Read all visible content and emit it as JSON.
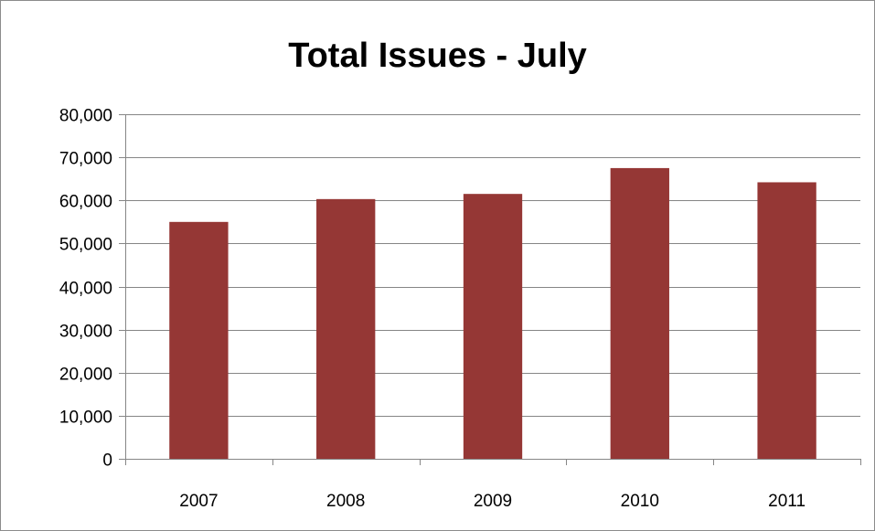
{
  "chart_data": {
    "type": "bar",
    "title": "Total Issues - July",
    "categories": [
      "2007",
      "2008",
      "2009",
      "2010",
      "2011"
    ],
    "values": [
      55000,
      60300,
      61500,
      67500,
      64200
    ],
    "ylim": [
      0,
      80000
    ],
    "yticks": [
      0,
      10000,
      20000,
      30000,
      40000,
      50000,
      60000,
      70000,
      80000
    ],
    "ytick_labels": [
      "0",
      "10,000",
      "20,000",
      "30,000",
      "40,000",
      "50,000",
      "60,000",
      "70,000",
      "80,000"
    ],
    "grid": true,
    "legend": "none",
    "bar_color": "#953735",
    "grid_color": "#868686"
  }
}
